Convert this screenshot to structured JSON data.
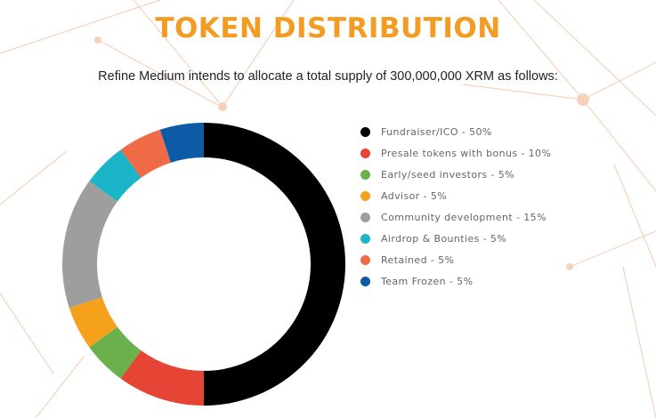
{
  "header": {
    "title": "TOKEN DISTRIBUTION",
    "subtitle": "Refine Medium intends to allocate a total supply of 300,000,000 XRM as follows:"
  },
  "colors": {
    "title": "#f39c23",
    "background_network": "#f6d2bd"
  },
  "chart_data": {
    "type": "pie",
    "style": "donut",
    "legend_position": "right",
    "slices": [
      {
        "name": "Fundraiser/ICO",
        "value": 50,
        "color": "#000000",
        "legend_label": "Fundraiser/ICO - 50%"
      },
      {
        "name": "Presale tokens with bonus",
        "value": 10,
        "color": "#e64434",
        "legend_label": "Presale tokens with bonus - 10%"
      },
      {
        "name": "Early/seed investors",
        "value": 5,
        "color": "#6ab04c",
        "legend_label": "Early/seed investors - 5%"
      },
      {
        "name": "Advisor",
        "value": 5,
        "color": "#f5a11c",
        "legend_label": "Advisor - 5%"
      },
      {
        "name": "Community development",
        "value": 15,
        "color": "#9e9e9e",
        "legend_label": "Community development - 15%"
      },
      {
        "name": "Airdrop & Bounties",
        "value": 5,
        "color": "#1ab5c8",
        "legend_label": "Airdrop & Bounties - 5%"
      },
      {
        "name": "Retained",
        "value": 5,
        "color": "#ef6b45",
        "legend_label": "Retained - 5%"
      },
      {
        "name": "Team Frozen",
        "value": 5,
        "color": "#0d5aa7",
        "legend_label": "Team Frozen - 5%"
      }
    ]
  }
}
